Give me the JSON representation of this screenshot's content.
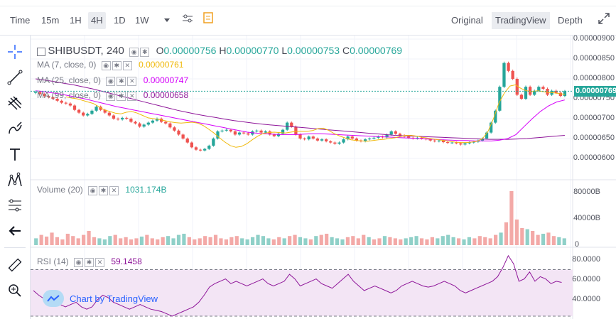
{
  "topbar": {
    "time_label": "Time",
    "intervals": [
      "15m",
      "1H",
      "4H",
      "1D",
      "1W"
    ],
    "active_interval": "4H",
    "dropdown_icon": "caret-down-icon",
    "settings_icon": "sliders-icon",
    "indicators_icon": "indicators-icon",
    "views": [
      "Original",
      "TradingView",
      "Depth"
    ],
    "active_view": "TradingView",
    "expand_icon": "expand-icon"
  },
  "left_toolbar": {
    "tools": [
      "crosshair-icon",
      "trend-line-icon",
      "pitchfork-icon",
      "brush-icon",
      "text-icon",
      "pattern-icon",
      "measure-icon",
      "arrow-left-icon",
      "ruler-icon",
      "zoom-in-icon"
    ]
  },
  "main": {
    "symbol": "SHIBUSDT, 240",
    "ohlc": {
      "o_label": "O",
      "o": "0.00000756",
      "h_label": "H",
      "h": "0.00000770",
      "l_label": "L",
      "l": "0.00000753",
      "c_label": "C",
      "c": "0.00000769"
    },
    "ma7": {
      "label": "MA (7, close, 0)",
      "value": "0.00000761",
      "color": "#f0b90b"
    },
    "ma25": {
      "label": "MA (25, close, 0)",
      "value": "0.00000747",
      "color": "#d500f9"
    },
    "ma99": {
      "label": "MA (99, close, 0)",
      "value": "0.00000658",
      "color": "#8e1599"
    },
    "price_axis": [
      "0.00000900",
      "0.00000850",
      "0.00000800",
      "0.00000750",
      "0.00000700",
      "0.00000650",
      "0.00000600"
    ],
    "last_price": "0.00000769"
  },
  "volume": {
    "label": "Volume (20)",
    "value": "1031.174B",
    "axis": [
      "80000B",
      "40000B",
      "0"
    ]
  },
  "rsi": {
    "label": "RSI (14)",
    "value": "59.1458",
    "axis": [
      "80.0000",
      "60.0000",
      "40.0000"
    ]
  },
  "badge": {
    "text": "Chart by TradingView"
  },
  "colors": {
    "up": "#26a69a",
    "down": "#ef5350",
    "rsi_line": "#8e1599",
    "rsi_band": "#f3e5f5"
  },
  "chart_data": {
    "type": "candlestick",
    "closes": [
      7.67e-06,
      7.62e-06,
      7.57e-06,
      7.54e-06,
      7.5e-06,
      7.45e-06,
      7.4e-06,
      7.38e-06,
      7.33e-06,
      7.22e-06,
      7.15e-06,
      7.08e-06,
      7.12e-06,
      7.2e-06,
      7.3e-06,
      7.22e-06,
      7.15e-06,
      7.08e-06,
      7e-06,
      6.98e-06,
      7.02e-06,
      7e-06,
      6.92e-06,
      6.88e-06,
      6.8e-06,
      6.85e-06,
      6.9e-06,
      6.95e-06,
      7e-06,
      6.92e-06,
      6.88e-06,
      6.78e-06,
      6.7e-06,
      6.6e-06,
      6.5e-06,
      6.4e-06,
      6.28e-06,
      6.22e-06,
      6.2e-06,
      6.24e-06,
      6.32e-06,
      6.5e-06,
      6.68e-06,
      6.7e-06,
      6.72e-06,
      6.68e-06,
      6.6e-06,
      6.65e-06,
      6.63e-06,
      6.6e-06,
      6.68e-06,
      6.7e-06,
      6.65e-06,
      6.68e-06,
      6.6e-06,
      6.56e-06,
      6.62e-06,
      6.72e-06,
      6.9e-06,
      6.8e-06,
      6.6e-06,
      6.5e-06,
      6.48e-06,
      6.55e-06,
      6.5e-06,
      6.45e-06,
      6.48e-06,
      6.43e-06,
      6.4e-06,
      6.37e-06,
      6.4e-06,
      6.48e-06,
      6.55e-06,
      6.5e-06,
      6.45e-06,
      6.43e-06,
      6.48e-06,
      6.5e-06,
      6.52e-06,
      6.55e-06,
      6.53e-06,
      6.6e-06,
      6.68e-06,
      6.62e-06,
      6.58e-06,
      6.55e-06,
      6.52e-06,
      6.5e-06,
      6.52e-06,
      6.5e-06,
      6.48e-06,
      6.45e-06,
      6.43e-06,
      6.45e-06,
      6.41e-06,
      6.39e-06,
      6.4e-06,
      6.38e-06,
      6.35e-06,
      6.38e-06,
      6.4e-06,
      6.42e-06,
      6.45e-06,
      6.5e-06,
      6.65e-06,
      6.9e-06,
      7.2e-06,
      7.8e-06,
      8.4e-06,
      8.2e-06,
      8e-06,
      7.6e-06,
      7.5e-06,
      7.8e-06,
      7.6e-06,
      7.7e-06,
      7.8e-06,
      7.75e-06,
      7.6e-06,
      7.7e-06,
      7.65e-06,
      7.57e-06,
      7.69e-06
    ],
    "ma7": [
      7.55e-06,
      7.52e-06,
      7.5e-06,
      7.46e-06,
      7.42e-06,
      7.38e-06,
      7.3e-06,
      7.22e-06,
      7.18e-06,
      7.14e-06,
      7.12e-06,
      7.16e-06,
      7.18e-06,
      7.14e-06,
      7.08e-06,
      7.02e-06,
      7e-06,
      6.98e-06,
      6.95e-06,
      6.92e-06,
      6.9e-06,
      6.89e-06,
      6.9e-06,
      6.91e-06,
      6.89e-06,
      6.83e-06,
      6.74e-06,
      6.64e-06,
      6.52e-06,
      6.41e-06,
      6.32e-06,
      6.28e-06,
      6.3e-06,
      6.37e-06,
      6.47e-06,
      6.56e-06,
      6.63e-06,
      6.65e-06,
      6.66e-06,
      6.65e-06,
      6.64e-06,
      6.66e-06,
      6.68e-06,
      6.68e-06,
      6.68e-06,
      6.7e-06,
      6.75e-06,
      6.76e-06,
      6.7e-06,
      6.62e-06,
      6.56e-06,
      6.51e-06,
      6.47e-06,
      6.45e-06,
      6.44e-06,
      6.43e-06,
      6.45e-06,
      6.47e-06,
      6.48e-06,
      6.5e-06,
      6.52e-06,
      6.55e-06,
      6.58e-06,
      6.58e-06,
      6.56e-06,
      6.53e-06,
      6.51e-06,
      6.49e-06,
      6.47e-06,
      6.45e-06,
      6.43e-06,
      6.41e-06,
      6.4e-06,
      6.4e-06,
      6.41e-06,
      6.43e-06,
      6.5e-06,
      6.68e-06,
      7e-06,
      7.4e-06,
      7.65e-06,
      7.82e-06,
      7.85e-06,
      7.76e-06,
      7.7e-06,
      7.68e-06,
      7.7e-06,
      7.68e-06,
      7.66e-06,
      7.65e-06,
      7.63e-06,
      7.61e-06
    ],
    "ma25": [
      7.7e-06,
      7.68e-06,
      7.65e-06,
      7.62e-06,
      7.58e-06,
      7.54e-06,
      7.5e-06,
      7.45e-06,
      7.4e-06,
      7.35e-06,
      7.3e-06,
      7.26e-06,
      7.22e-06,
      7.18e-06,
      7.14e-06,
      7.1e-06,
      7.06e-06,
      7.02e-06,
      6.98e-06,
      6.94e-06,
      6.9e-06,
      6.86e-06,
      6.82e-06,
      6.78e-06,
      6.74e-06,
      6.7e-06,
      6.66e-06,
      6.64e-06,
      6.62e-06,
      6.61e-06,
      6.6e-06,
      6.6e-06,
      6.6e-06,
      6.61e-06,
      6.62e-06,
      6.62e-06,
      6.61e-06,
      6.6e-06,
      6.59e-06,
      6.58e-06,
      6.57e-06,
      6.56e-06,
      6.55e-06,
      6.54e-06,
      6.53e-06,
      6.52e-06,
      6.51e-06,
      6.5e-06,
      6.49e-06,
      6.48e-06,
      6.47e-06,
      6.46e-06,
      6.45e-06,
      6.45e-06,
      6.44e-06,
      6.44e-06,
      6.44e-06,
      6.46e-06,
      6.5e-06,
      6.6e-06,
      6.8e-06,
      7e-06,
      7.18e-06,
      7.32e-06,
      7.42e-06,
      7.47e-06
    ],
    "ma99": [
      8e-06,
      7.97e-06,
      7.93e-06,
      7.89e-06,
      7.85e-06,
      7.8e-06,
      7.75e-06,
      7.69e-06,
      7.63e-06,
      7.57e-06,
      7.51e-06,
      7.45e-06,
      7.39e-06,
      7.33e-06,
      7.27e-06,
      7.21e-06,
      7.16e-06,
      7.11e-06,
      7.07e-06,
      7.03e-06,
      6.99e-06,
      6.95e-06,
      6.92e-06,
      6.89e-06,
      6.86e-06,
      6.84e-06,
      6.82e-06,
      6.8e-06,
      6.78e-06,
      6.76e-06,
      6.74e-06,
      6.72e-06,
      6.7e-06,
      6.68e-06,
      6.66e-06,
      6.64e-06,
      6.62e-06,
      6.6e-06,
      6.58e-06,
      6.57e-06,
      6.56e-06,
      6.55e-06,
      6.54e-06,
      6.53e-06,
      6.52e-06,
      6.51e-06,
      6.5e-06,
      6.49e-06,
      6.48e-06,
      6.48e-06,
      6.48e-06,
      6.49e-06,
      6.5e-06,
      6.52e-06,
      6.54e-06,
      6.56e-06,
      6.58e-06
    ],
    "rsi": [
      52,
      48,
      45,
      44,
      42,
      40,
      38,
      40,
      42,
      38,
      36,
      38,
      44,
      48,
      46,
      42,
      40,
      38,
      36,
      38,
      40,
      38,
      36,
      35,
      34,
      32,
      30,
      32,
      34,
      36,
      38,
      42,
      48,
      55,
      58,
      60,
      62,
      58,
      60,
      58,
      56,
      58,
      60,
      62,
      58,
      56,
      58,
      60,
      66,
      62,
      56,
      58,
      60,
      62,
      58,
      56,
      54,
      58,
      62,
      66,
      60,
      56,
      52,
      54,
      56,
      54,
      52,
      50,
      52,
      56,
      58,
      60,
      58,
      56,
      55,
      56,
      58,
      60,
      58,
      56,
      52,
      50,
      52,
      54,
      56,
      58,
      60,
      64,
      72,
      82,
      75,
      60,
      62,
      68,
      60,
      64,
      62,
      58,
      60,
      59
    ],
    "volumes": [
      12,
      18,
      15,
      22,
      14,
      10,
      20,
      16,
      12,
      18,
      25,
      14,
      12,
      10,
      16,
      18,
      12,
      14,
      10,
      12,
      15,
      18,
      12,
      10,
      14,
      16,
      12,
      18,
      20,
      14,
      10,
      12,
      16,
      14,
      18,
      12,
      10,
      14,
      16,
      12,
      10,
      14,
      18,
      16,
      12,
      10,
      14,
      12,
      16,
      18,
      14,
      12,
      10,
      16,
      18,
      20,
      14,
      12,
      10,
      14,
      16,
      12,
      18,
      14,
      10,
      12,
      16,
      14,
      12,
      10,
      12,
      14,
      16,
      12,
      10,
      14,
      12,
      16,
      18,
      14,
      12,
      10,
      14,
      12,
      16,
      14,
      12,
      18,
      22,
      40,
      95,
      45,
      30,
      28,
      25,
      18,
      20,
      22,
      16,
      14,
      12
    ]
  }
}
